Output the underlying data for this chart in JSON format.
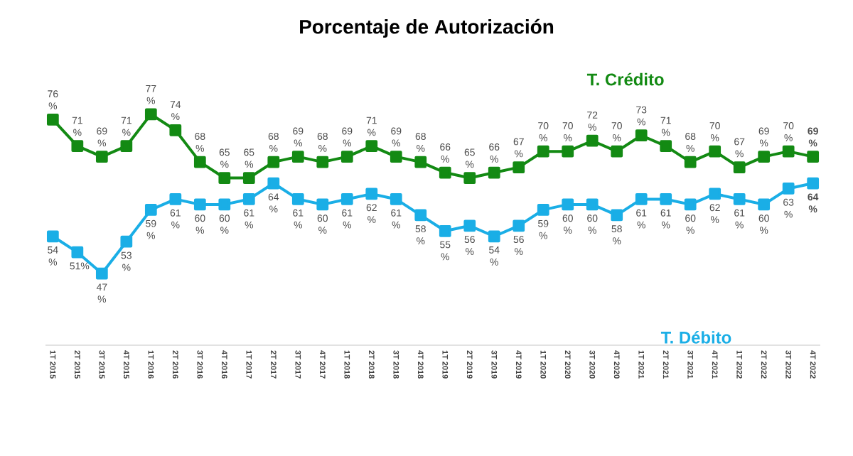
{
  "chart_data": {
    "type": "line",
    "title": "Porcentaje de Autorización",
    "categories": [
      "1T 2015",
      "2T 2015",
      "3T 2015",
      "4T 2015",
      "1T 2016",
      "2T 2016",
      "3T 2016",
      "4T 2016",
      "1T 2017",
      "2T 2017",
      "3T 2017",
      "4T 2017",
      "1T 2018",
      "2T 2018",
      "3T 2018",
      "4T 2018",
      "1T 2019",
      "2T 2019",
      "3T 2019",
      "4T 2019",
      "1T 2020",
      "2T 2020",
      "3T 2020",
      "4T 2020",
      "1T 2021",
      "2T 2021",
      "3T 2021",
      "4T 2021",
      "1T 2022",
      "2T 2022",
      "3T 2022",
      "4T 2022"
    ],
    "series": [
      {
        "name": "T. Crédito",
        "color": "#138a13",
        "values": [
          76,
          71,
          69,
          71,
          77,
          74,
          68,
          65,
          65,
          68,
          69,
          68,
          69,
          71,
          69,
          68,
          66,
          65,
          66,
          67,
          70,
          70,
          72,
          70,
          73,
          71,
          68,
          70,
          67,
          69,
          70,
          69
        ],
        "value_labels": [
          "76 %",
          "71 %",
          "69 %",
          "71 %",
          "77 %",
          "74 %",
          "68 %",
          "65 %",
          "65 %",
          "68 %",
          "69 %",
          "68 %",
          "69 %",
          "71 %",
          "69 %",
          "68 %",
          "66 %",
          "65 %",
          "66 %",
          "67 %",
          "70 %",
          "70 %",
          "72 %",
          "70 %",
          "73 %",
          "71 %",
          "68 %",
          "70 %",
          "67 %",
          "69 %",
          "70 %",
          "**69 %**"
        ]
      },
      {
        "name": "T. Débito",
        "color": "#1aaee6",
        "values": [
          54,
          51,
          47,
          53,
          59,
          61,
          60,
          60,
          61,
          64,
          61,
          60,
          61,
          62,
          61,
          58,
          55,
          56,
          54,
          56,
          59,
          60,
          60,
          58,
          61,
          61,
          60,
          62,
          61,
          60,
          63,
          64
        ],
        "value_labels": [
          "54 %",
          "51%",
          "47 %",
          "53 %",
          "59 %",
          "61 %",
          "60 %",
          "60 %",
          "61 %",
          "64 %",
          "61 %",
          "60 %",
          "61 %",
          "62 %",
          "61 %",
          "58 %",
          "55 %",
          "56 %",
          "54 %",
          "56 %",
          "59 %",
          "60 %",
          "60 %",
          "58 %",
          "61 %",
          "61 %",
          "60 %",
          "62 %",
          "61 %",
          "60 %",
          "63 %",
          "**64 %**"
        ]
      }
    ],
    "marker": "square",
    "line_style": "solid",
    "grid": false,
    "tick_labels": "x"
  }
}
